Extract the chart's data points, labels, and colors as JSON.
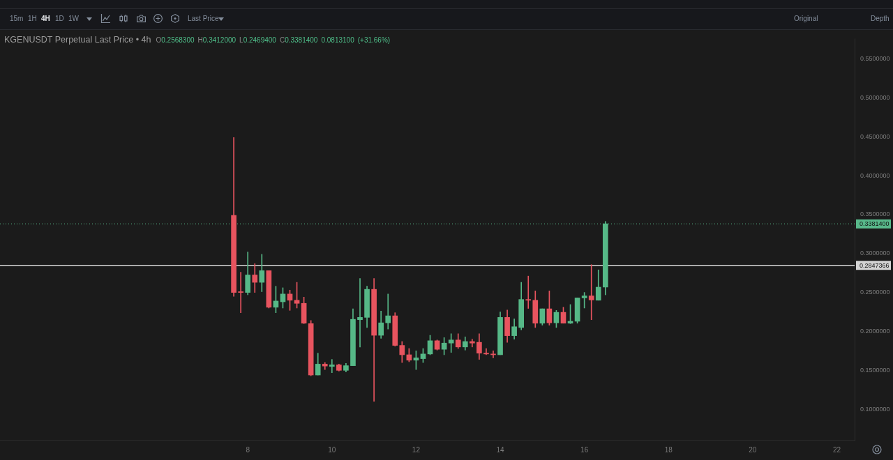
{
  "chart_data": {
    "type": "candlestick",
    "title": "KGENUSDT Perpetual Last Price • 4h",
    "subtitle": "O0.2568300 H0.3412000 L0.2469400 C0.3381400 0.0813100 (+31.66%)",
    "annotations": [
      "15m",
      "1H",
      "4H",
      "1D",
      "1W",
      "Last Price",
      "Original",
      "Depth"
    ],
    "x": [
      7.6667,
      7.8333,
      8,
      8.1667,
      8.3333,
      8.5,
      8.6667,
      8.8333,
      9,
      9.1667,
      9.3333,
      9.5,
      9.6667,
      9.8333,
      10,
      10.1667,
      10.3333,
      10.5,
      10.6667,
      10.8333,
      11,
      11.1667,
      11.3333,
      11.5,
      11.6667,
      11.8333,
      12,
      12.1667,
      12.3333,
      12.5,
      12.6667,
      12.8333,
      13,
      13.1667,
      13.3333,
      13.5,
      13.6667,
      13.8333,
      14,
      14.1667,
      14.3333,
      14.5,
      14.6667,
      14.8333,
      15,
      15.1667,
      15.3333,
      15.5,
      15.6667,
      15.8333,
      16,
      16.1667,
      16.3333,
      16.5
    ],
    "ohlc": [
      [
        0.349,
        0.449,
        0.245,
        0.25
      ],
      [
        0.251,
        0.276,
        0.224,
        0.25
      ],
      [
        0.25,
        0.302,
        0.247,
        0.2725
      ],
      [
        0.2725,
        0.287,
        0.25,
        0.263
      ],
      [
        0.263,
        0.299,
        0.251,
        0.278
      ],
      [
        0.278,
        0.278,
        0.23,
        0.231
      ],
      [
        0.231,
        0.258,
        0.224,
        0.239
      ],
      [
        0.238,
        0.256,
        0.23,
        0.248
      ],
      [
        0.248,
        0.253,
        0.227,
        0.24
      ],
      [
        0.24,
        0.263,
        0.23,
        0.236
      ],
      [
        0.236,
        0.244,
        0.21,
        0.2105
      ],
      [
        0.21,
        0.214,
        0.143,
        0.144
      ],
      [
        0.144,
        0.172,
        0.144,
        0.158
      ],
      [
        0.158,
        0.16,
        0.151,
        0.1555
      ],
      [
        0.155,
        0.164,
        0.147,
        0.157
      ],
      [
        0.157,
        0.158,
        0.149,
        0.15
      ],
      [
        0.15,
        0.159,
        0.148,
        0.156
      ],
      [
        0.156,
        0.229,
        0.156,
        0.2155
      ],
      [
        0.215,
        0.268,
        0.18,
        0.218
      ],
      [
        0.218,
        0.258,
        0.205,
        0.254
      ],
      [
        0.254,
        0.268,
        0.11,
        0.195
      ],
      [
        0.195,
        0.226,
        0.191,
        0.211
      ],
      [
        0.211,
        0.248,
        0.203,
        0.22
      ],
      [
        0.22,
        0.224,
        0.181,
        0.182
      ],
      [
        0.182,
        0.187,
        0.16,
        0.17
      ],
      [
        0.17,
        0.178,
        0.161,
        0.163
      ],
      [
        0.163,
        0.175,
        0.151,
        0.166
      ],
      [
        0.165,
        0.178,
        0.16,
        0.171
      ],
      [
        0.171,
        0.195,
        0.17,
        0.188
      ],
      [
        0.188,
        0.189,
        0.176,
        0.177
      ],
      [
        0.177,
        0.192,
        0.17,
        0.185
      ],
      [
        0.185,
        0.197,
        0.173,
        0.189
      ],
      [
        0.189,
        0.197,
        0.178,
        0.18
      ],
      [
        0.18,
        0.193,
        0.176,
        0.187
      ],
      [
        0.187,
        0.19,
        0.18,
        0.185
      ],
      [
        0.186,
        0.197,
        0.164,
        0.172
      ],
      [
        0.172,
        0.178,
        0.17,
        0.171
      ],
      [
        0.171,
        0.175,
        0.166,
        0.17
      ],
      [
        0.17,
        0.225,
        0.17,
        0.218
      ],
      [
        0.218,
        0.2275,
        0.186,
        0.1945
      ],
      [
        0.1945,
        0.216,
        0.19,
        0.206
      ],
      [
        0.205,
        0.263,
        0.202,
        0.241
      ],
      [
        0.241,
        0.271,
        0.2295,
        0.24
      ],
      [
        0.24,
        0.252,
        0.205,
        0.2105
      ],
      [
        0.2105,
        0.229,
        0.208,
        0.229
      ],
      [
        0.229,
        0.252,
        0.208,
        0.211
      ],
      [
        0.211,
        0.227,
        0.205,
        0.2245
      ],
      [
        0.2245,
        0.231,
        0.2105,
        0.2105
      ],
      [
        0.2105,
        0.2345,
        0.21,
        0.213
      ],
      [
        0.213,
        0.243,
        0.2105,
        0.243
      ],
      [
        0.243,
        0.25,
        0.23,
        0.2456
      ],
      [
        0.2456,
        0.2857,
        0.215,
        0.2404
      ],
      [
        0.24,
        0.279,
        0.24,
        0.2568
      ],
      [
        0.25683,
        0.3412,
        0.24694,
        0.33814
      ]
    ],
    "colors": [
      "#e8545f",
      "#e8545f",
      "#56b887",
      "#e8545f",
      "#56b887",
      "#e8545f",
      "#56b887",
      "#56b887",
      "#e8545f",
      "#e8545f",
      "#e8545f",
      "#e8545f",
      "#56b887",
      "#e8545f",
      "#56b887",
      "#e8545f",
      "#56b887",
      "#56b887",
      "#56b887",
      "#56b887",
      "#e8545f",
      "#56b887",
      "#56b887",
      "#e8545f",
      "#e8545f",
      "#e8545f",
      "#56b887",
      "#56b887",
      "#56b887",
      "#e8545f",
      "#56b887",
      "#56b887",
      "#e8545f",
      "#56b887",
      "#e8545f",
      "#e8545f",
      "#e8545f",
      "#e8545f",
      "#56b887",
      "#e8545f",
      "#56b887",
      "#56b887",
      "#e8545f",
      "#e8545f",
      "#56b887",
      "#e8545f",
      "#56b887",
      "#e8545f",
      "#56b887",
      "#56b887",
      "#56b887",
      "#e8545f",
      "#56b887",
      "#56b887"
    ],
    "xlim": [
      2.11,
      22.44
    ],
    "xticks": [
      8,
      10,
      12,
      14,
      16,
      18,
      20,
      22
    ],
    "ylim": [
      0.059,
      0.576
    ],
    "yticks": [
      {
        "value": 0.1,
        "label": "0.1000000"
      },
      {
        "value": 0.15,
        "label": "0.1500000"
      },
      {
        "value": 0.2,
        "label": "0.2000000"
      },
      {
        "value": 0.25,
        "label": "0.2500000"
      },
      {
        "value": 0.3,
        "label": "0.3000000"
      },
      {
        "value": 0.35,
        "label": "0.3500000"
      },
      {
        "value": 0.4,
        "label": "0.4000000"
      },
      {
        "value": 0.45,
        "label": "0.4500000"
      },
      {
        "value": 0.5,
        "label": "0.5000000"
      },
      {
        "value": 0.55,
        "label": "0.5500000"
      }
    ],
    "ref_lines": [
      {
        "axis": "y",
        "value": 0.33814,
        "label": "0.3381400",
        "color": "#58b88a",
        "line_style": "dotted"
      },
      {
        "axis": "y",
        "value": 0.2847366,
        "label": "0.2847366",
        "color": "#d2d2d2",
        "line_style": "solid"
      }
    ]
  }
}
